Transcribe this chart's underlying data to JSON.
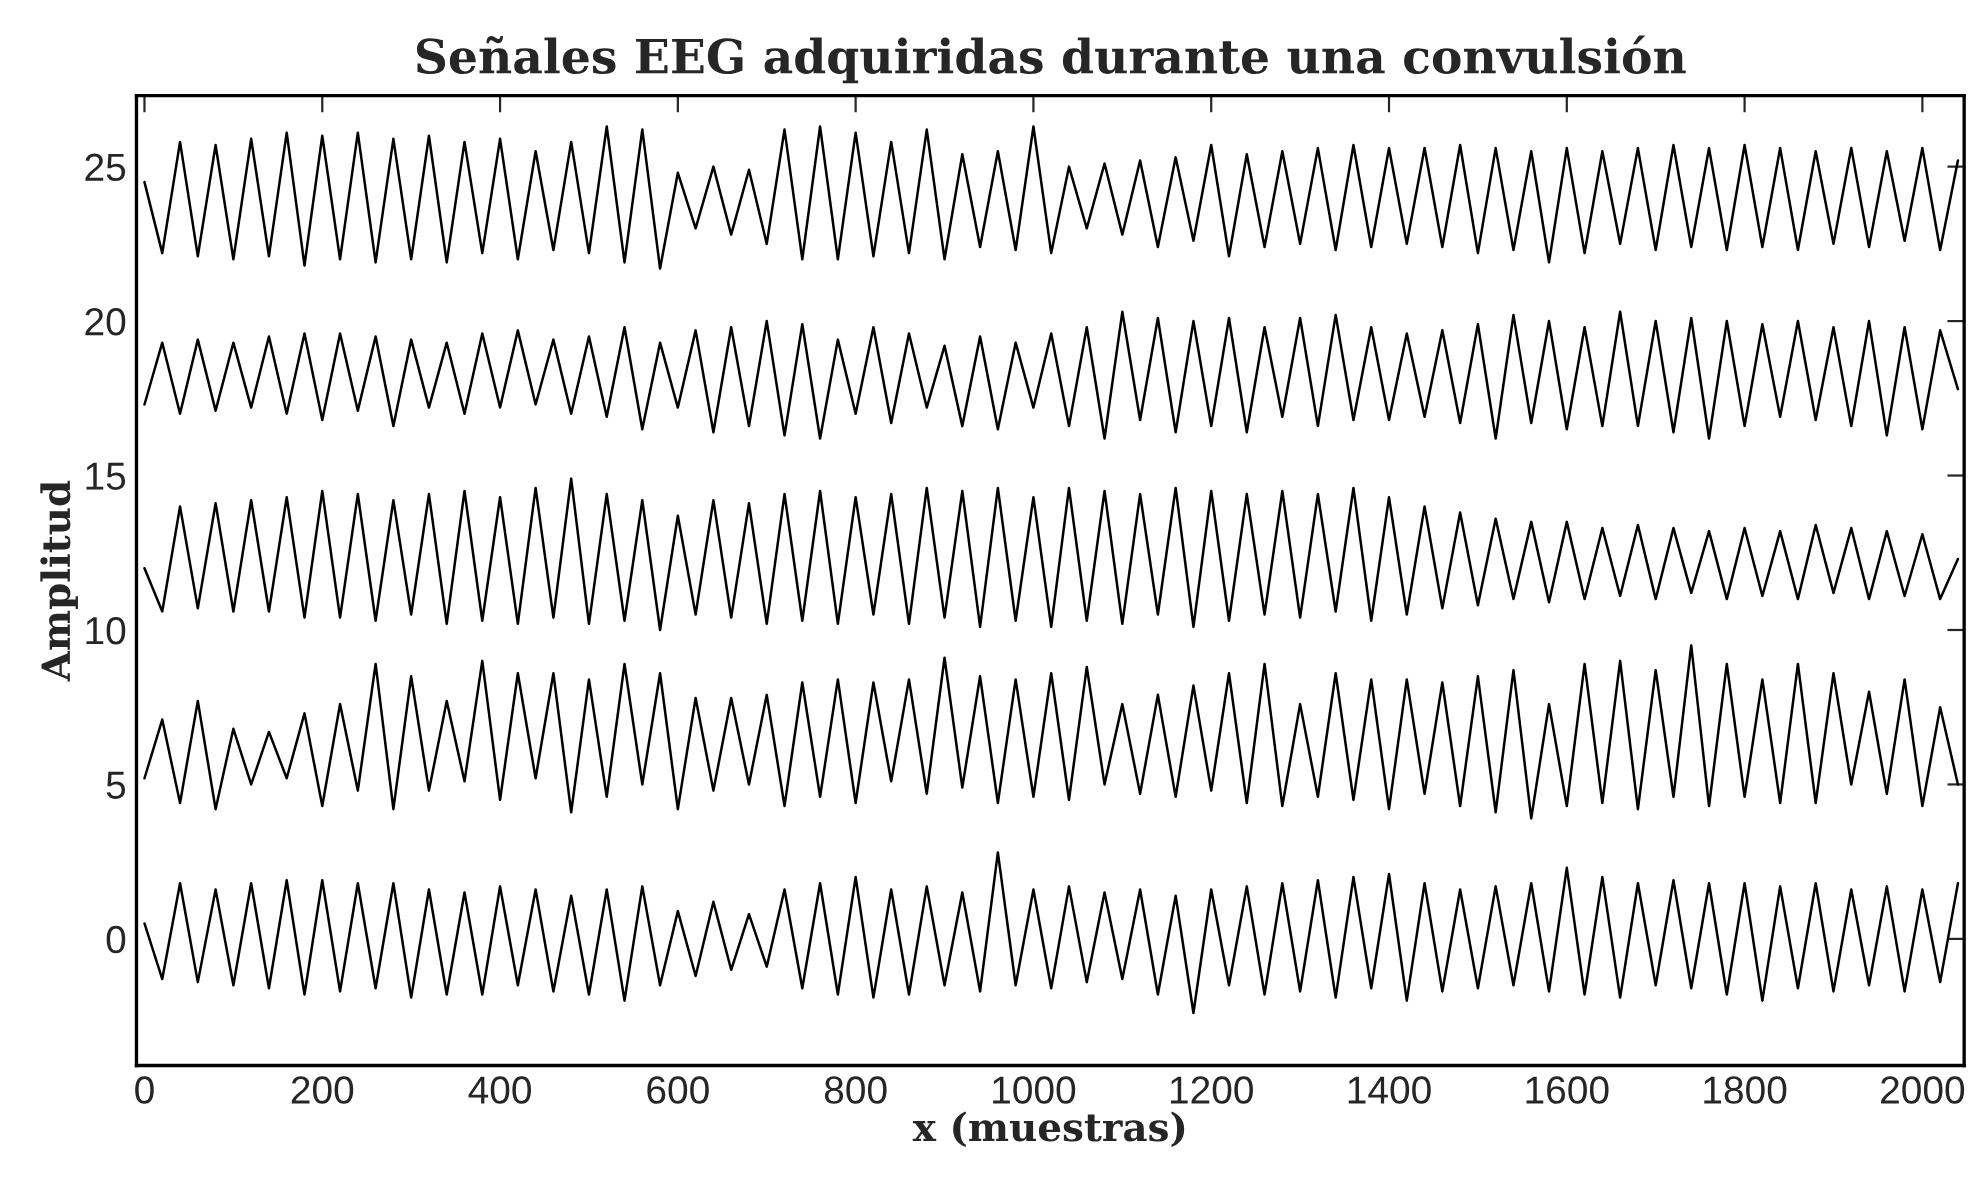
{
  "chart_data": {
    "type": "line",
    "title": "Señales EEG adquiridas durante una convulsión",
    "xlabel": "x (muestras)",
    "ylabel": "Amplitud",
    "x": [
      0,
      20,
      40,
      60,
      80,
      100,
      120,
      140,
      160,
      180,
      200,
      220,
      240,
      260,
      280,
      300,
      320,
      340,
      360,
      380,
      400,
      420,
      440,
      460,
      480,
      500,
      520,
      540,
      560,
      580,
      600,
      620,
      640,
      660,
      680,
      700,
      720,
      740,
      760,
      780,
      800,
      820,
      840,
      860,
      880,
      900,
      920,
      940,
      960,
      980,
      1000,
      1020,
      1040,
      1060,
      1080,
      1100,
      1120,
      1140,
      1160,
      1180,
      1200,
      1220,
      1240,
      1260,
      1280,
      1300,
      1320,
      1340,
      1360,
      1380,
      1400,
      1420,
      1440,
      1460,
      1480,
      1500,
      1520,
      1540,
      1560,
      1580,
      1600,
      1620,
      1640,
      1660,
      1680,
      1700,
      1720,
      1740,
      1760,
      1780,
      1800,
      1820,
      1840,
      1860,
      1880,
      1900,
      1920,
      1940,
      1960,
      1980,
      2000,
      2020,
      2040
    ],
    "series": [
      {
        "color": "#000000",
        "values": [
          24.5,
          22.2,
          25.8,
          22.1,
          25.7,
          22.0,
          25.9,
          22.1,
          26.1,
          21.8,
          26.0,
          22.0,
          26.1,
          21.9,
          25.9,
          22.0,
          26.0,
          21.9,
          25.8,
          22.2,
          25.9,
          22.0,
          25.5,
          22.3,
          25.8,
          22.2,
          26.3,
          21.9,
          26.2,
          21.7,
          24.8,
          23.0,
          25.0,
          22.8,
          24.9,
          22.5,
          26.2,
          22.0,
          26.3,
          22.0,
          26.1,
          22.1,
          25.8,
          22.2,
          26.2,
          22.0,
          25.4,
          22.4,
          25.5,
          22.3,
          26.3,
          22.2,
          25.0,
          23.0,
          25.1,
          22.8,
          25.2,
          22.4,
          25.3,
          22.6,
          25.7,
          22.1,
          25.4,
          22.4,
          25.5,
          22.5,
          25.6,
          22.3,
          25.7,
          22.4,
          25.6,
          22.5,
          25.6,
          22.4,
          25.7,
          22.2,
          25.6,
          22.3,
          25.5,
          21.9,
          25.6,
          22.2,
          25.5,
          22.5,
          25.6,
          22.3,
          25.7,
          22.4,
          25.6,
          22.3,
          25.7,
          22.4,
          25.6,
          22.3,
          25.5,
          22.5,
          25.6,
          22.4,
          25.5,
          22.6,
          25.6,
          22.3,
          25.2
        ]
      },
      {
        "color": "#000000",
        "values": [
          17.3,
          19.3,
          17.0,
          19.4,
          17.1,
          19.3,
          17.2,
          19.5,
          17.0,
          19.6,
          16.8,
          19.6,
          17.1,
          19.5,
          16.6,
          19.4,
          17.2,
          19.3,
          17.0,
          19.6,
          17.2,
          19.7,
          17.3,
          19.4,
          17.0,
          19.5,
          16.9,
          19.8,
          16.5,
          19.3,
          17.2,
          19.7,
          16.4,
          19.8,
          16.6,
          20.0,
          16.3,
          19.9,
          16.2,
          19.4,
          17.0,
          19.8,
          16.7,
          19.6,
          17.2,
          19.2,
          16.6,
          19.5,
          16.5,
          19.3,
          17.2,
          19.6,
          16.6,
          19.8,
          16.2,
          20.3,
          16.8,
          20.1,
          16.4,
          20.0,
          16.6,
          20.1,
          16.4,
          19.8,
          16.9,
          20.1,
          16.6,
          20.2,
          16.8,
          19.8,
          16.8,
          19.6,
          16.9,
          19.7,
          16.7,
          19.9,
          16.2,
          20.2,
          16.7,
          20.0,
          16.5,
          19.8,
          16.6,
          20.3,
          16.6,
          20.0,
          16.4,
          20.1,
          16.2,
          20.0,
          16.6,
          19.9,
          16.9,
          20.0,
          16.8,
          19.8,
          16.6,
          20.0,
          16.3,
          19.8,
          16.5,
          19.7,
          17.8
        ]
      },
      {
        "color": "#000000",
        "values": [
          12.0,
          10.6,
          14.0,
          10.7,
          14.1,
          10.6,
          14.2,
          10.6,
          14.3,
          10.4,
          14.5,
          10.4,
          14.4,
          10.3,
          14.2,
          10.5,
          14.4,
          10.2,
          14.5,
          10.3,
          14.3,
          10.2,
          14.6,
          10.4,
          14.9,
          10.2,
          14.4,
          10.3,
          14.2,
          10.0,
          13.7,
          10.5,
          14.2,
          10.4,
          14.1,
          10.2,
          14.4,
          10.3,
          14.5,
          10.2,
          14.3,
          10.5,
          14.4,
          10.2,
          14.6,
          10.4,
          14.5,
          10.1,
          14.6,
          10.3,
          14.3,
          10.1,
          14.6,
          10.3,
          14.5,
          10.2,
          14.4,
          10.5,
          14.6,
          10.1,
          14.5,
          10.3,
          14.4,
          10.5,
          14.5,
          10.4,
          14.4,
          10.6,
          14.6,
          10.3,
          14.3,
          10.5,
          14.0,
          10.7,
          13.8,
          10.8,
          13.6,
          11.0,
          13.5,
          10.9,
          13.5,
          11.0,
          13.3,
          11.1,
          13.4,
          11.0,
          13.3,
          11.2,
          13.2,
          11.0,
          13.3,
          11.1,
          13.2,
          11.0,
          13.4,
          11.2,
          13.3,
          11.0,
          13.2,
          11.1,
          13.1,
          11.0,
          12.3
        ]
      },
      {
        "color": "#000000",
        "values": [
          5.2,
          7.1,
          4.4,
          7.7,
          4.2,
          6.8,
          5.0,
          6.7,
          5.2,
          7.3,
          4.3,
          7.6,
          4.8,
          8.9,
          4.2,
          8.5,
          4.8,
          7.7,
          5.1,
          9.0,
          4.5,
          8.6,
          5.2,
          8.6,
          4.1,
          8.4,
          4.6,
          8.9,
          5.0,
          8.6,
          4.2,
          7.8,
          4.8,
          7.8,
          5.0,
          7.9,
          4.3,
          8.3,
          4.6,
          8.4,
          4.4,
          8.3,
          5.1,
          8.4,
          4.7,
          9.1,
          4.9,
          8.5,
          4.4,
          8.4,
          4.6,
          8.6,
          4.5,
          8.8,
          5.0,
          7.6,
          4.7,
          7.9,
          4.6,
          8.2,
          4.8,
          8.6,
          4.4,
          8.9,
          4.3,
          7.6,
          4.6,
          8.6,
          4.5,
          8.4,
          4.2,
          8.4,
          4.7,
          8.3,
          4.3,
          8.5,
          4.1,
          8.7,
          3.9,
          7.6,
          4.3,
          8.9,
          4.4,
          9.0,
          4.2,
          8.7,
          4.6,
          9.5,
          4.3,
          8.9,
          4.6,
          8.4,
          4.4,
          8.9,
          4.4,
          8.6,
          5.0,
          8.0,
          4.7,
          8.4,
          4.3,
          7.5,
          5.0
        ]
      },
      {
        "color": "#000000",
        "values": [
          0.5,
          -1.3,
          1.8,
          -1.4,
          1.6,
          -1.5,
          1.8,
          -1.6,
          1.9,
          -1.8,
          1.9,
          -1.7,
          1.8,
          -1.6,
          1.8,
          -1.9,
          1.6,
          -1.8,
          1.5,
          -1.8,
          1.7,
          -1.5,
          1.6,
          -1.7,
          1.4,
          -1.8,
          1.6,
          -2.0,
          1.7,
          -1.5,
          0.9,
          -1.2,
          1.2,
          -1.0,
          0.8,
          -0.9,
          1.6,
          -1.6,
          1.8,
          -1.8,
          2.0,
          -1.9,
          1.6,
          -1.8,
          1.7,
          -1.5,
          1.5,
          -1.7,
          2.8,
          -1.5,
          1.6,
          -1.6,
          1.7,
          -1.4,
          1.5,
          -1.3,
          1.6,
          -1.8,
          1.4,
          -2.4,
          1.6,
          -1.5,
          1.7,
          -1.8,
          1.8,
          -1.7,
          1.9,
          -1.9,
          2.0,
          -1.6,
          2.1,
          -2.0,
          1.8,
          -1.7,
          1.6,
          -1.6,
          1.7,
          -1.5,
          1.8,
          -1.7,
          2.3,
          -1.8,
          2.0,
          -1.9,
          1.8,
          -1.5,
          1.9,
          -1.6,
          1.8,
          -1.8,
          1.8,
          -2.0,
          1.7,
          -1.6,
          1.8,
          -1.7,
          1.6,
          -1.5,
          1.7,
          -1.7,
          1.6,
          -1.4,
          1.8
        ]
      }
    ],
    "xlim": [
      -9,
      2047
    ],
    "ylim": [
      -4.1,
      27.3
    ],
    "xticks": [
      0,
      200,
      400,
      600,
      800,
      1000,
      1200,
      1400,
      1600,
      1800,
      2000
    ],
    "yticks": [
      0,
      5,
      10,
      15,
      20,
      25
    ],
    "grid": false,
    "legend": false,
    "line_style": "solid",
    "marker": "none"
  }
}
